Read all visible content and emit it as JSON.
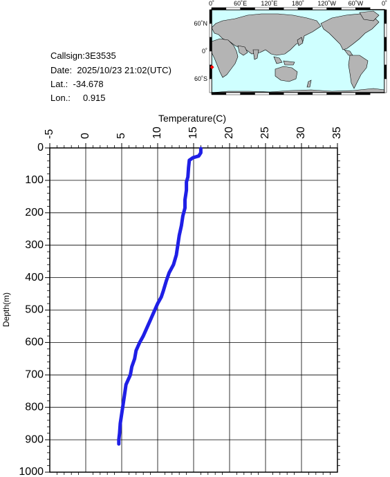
{
  "station": {
    "callsign_label": "Callsign:",
    "callsign": "3E3535",
    "date_label": "Date:",
    "date": "2025/10/23 21:02(UTC)",
    "lat_label": "Lat.:",
    "lat": "-34.678",
    "lon_label": "Lon.:",
    "lon": "0.915"
  },
  "map": {
    "lon_ticks": [
      "0˚",
      "60˚E",
      "120˚E",
      "180˚",
      "120˚W",
      "60˚W",
      "0˚"
    ],
    "lat_ticks": [
      "60˚N",
      "0˚",
      "60˚S"
    ],
    "ocean_color": "#cfffff",
    "land_color": "#b4b4b4",
    "marker_color": "#ff0000",
    "marker_lon": 0.915,
    "marker_lat": -34.678
  },
  "chart_data": {
    "type": "line",
    "xlabel": "Temperature(C)",
    "ylabel": "Depth(m)",
    "xlim": [
      -5,
      35
    ],
    "ylim": [
      0,
      1000
    ],
    "x_ticks": [
      "-5",
      "0",
      "5",
      "10",
      "15",
      "20",
      "25",
      "30",
      "35"
    ],
    "y_ticks": [
      "0",
      "100",
      "200",
      "300",
      "400",
      "500",
      "600",
      "700",
      "800",
      "900",
      "1000"
    ],
    "grid": true,
    "series": [
      {
        "color": "#1f1fe6",
        "points": [
          [
            16.0,
            2
          ],
          [
            16.0,
            15
          ],
          [
            15.7,
            25
          ],
          [
            14.9,
            30
          ],
          [
            14.4,
            38
          ],
          [
            14.3,
            60
          ],
          [
            14.2,
            90
          ],
          [
            14.0,
            105
          ],
          [
            14.0,
            130
          ],
          [
            13.8,
            160
          ],
          [
            13.8,
            185
          ],
          [
            13.5,
            210
          ],
          [
            13.3,
            240
          ],
          [
            13.0,
            270
          ],
          [
            12.8,
            300
          ],
          [
            12.6,
            330
          ],
          [
            12.2,
            360
          ],
          [
            11.6,
            385
          ],
          [
            11.2,
            410
          ],
          [
            10.8,
            440
          ],
          [
            10.5,
            460
          ],
          [
            10.0,
            480
          ],
          [
            9.5,
            505
          ],
          [
            9.0,
            530
          ],
          [
            8.5,
            555
          ],
          [
            8.0,
            580
          ],
          [
            7.5,
            600
          ],
          [
            7.0,
            625
          ],
          [
            6.8,
            650
          ],
          [
            6.4,
            675
          ],
          [
            6.2,
            700
          ],
          [
            5.8,
            720
          ],
          [
            5.6,
            730
          ],
          [
            5.4,
            760
          ],
          [
            5.2,
            790
          ],
          [
            5.0,
            820
          ],
          [
            4.8,
            850
          ],
          [
            4.7,
            880
          ],
          [
            4.6,
            900
          ],
          [
            4.6,
            913
          ]
        ]
      }
    ]
  }
}
